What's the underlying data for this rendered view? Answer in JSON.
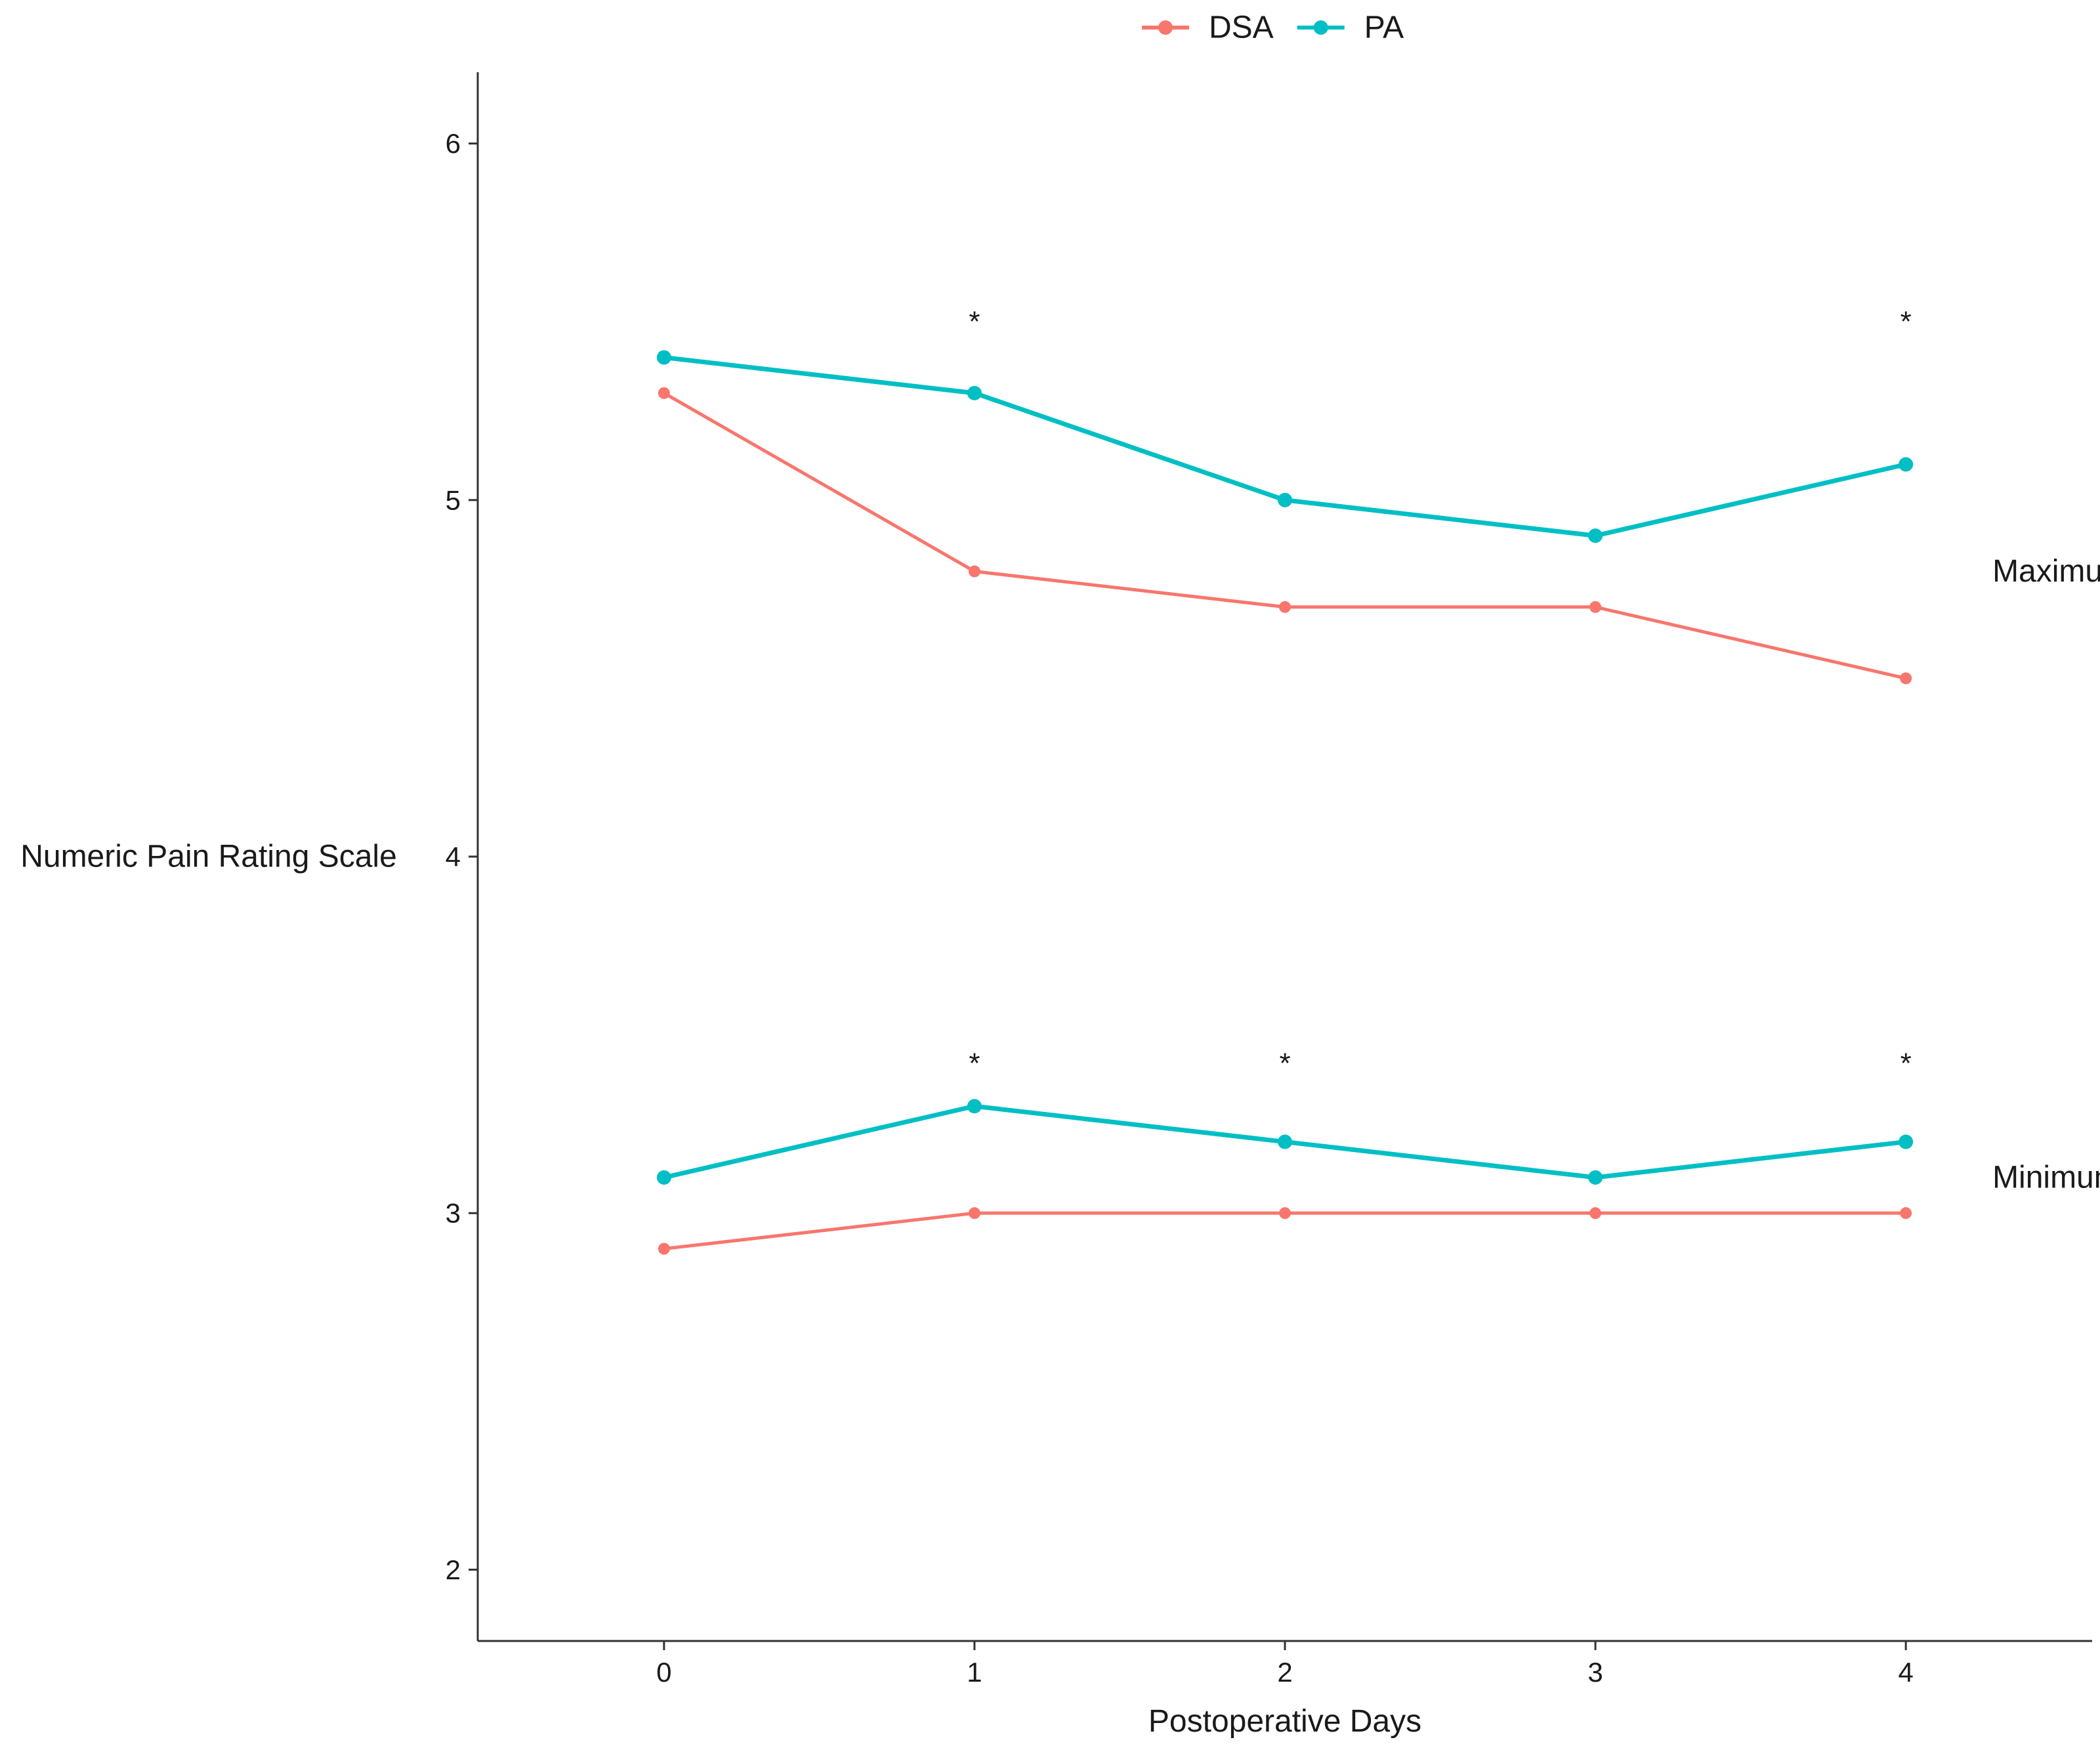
{
  "chart_data": {
    "type": "line",
    "xlabel": "Postoperative Days",
    "ylabel": "Numeric Pain Rating Scale",
    "x": [
      0,
      1,
      2,
      3,
      4
    ],
    "x_ticks": [
      "0",
      "1",
      "2",
      "3",
      "4"
    ],
    "xlim": [
      -0.6,
      4.6
    ],
    "y_ticks": [
      "2",
      "3",
      "4",
      "5",
      "6"
    ],
    "ylim": [
      1.8,
      6.2
    ],
    "grid": false,
    "legend": {
      "position": "top",
      "entries": [
        {
          "name": "DSA",
          "color": "#F8766D"
        },
        {
          "name": "PA",
          "color": "#00BFC4"
        }
      ]
    },
    "series": [
      {
        "name": "DSA",
        "group": "Maximum",
        "color": "#F8766D",
        "values": [
          5.3,
          4.8,
          4.7,
          4.7,
          4.5
        ]
      },
      {
        "name": "PA",
        "group": "Maximum",
        "color": "#00BFC4",
        "values": [
          5.4,
          5.3,
          5.0,
          4.9,
          5.1
        ]
      },
      {
        "name": "DSA",
        "group": "Minimum",
        "color": "#F8766D",
        "values": [
          2.9,
          3.0,
          3.0,
          3.0,
          3.0
        ]
      },
      {
        "name": "PA",
        "group": "Minimum",
        "color": "#00BFC4",
        "values": [
          3.1,
          3.3,
          3.2,
          3.1,
          3.2
        ]
      }
    ],
    "annotations": [
      {
        "text": "Maximum",
        "x": 4.3,
        "y": 4.8
      },
      {
        "text": "Minimum",
        "x": 4.3,
        "y": 3.1
      }
    ],
    "significance_markers": [
      {
        "text": "*",
        "x": 1,
        "y": 5.5
      },
      {
        "text": "*",
        "x": 4,
        "y": 5.5
      },
      {
        "text": "*",
        "x": 1,
        "y": 3.42
      },
      {
        "text": "*",
        "x": 2,
        "y": 3.42
      },
      {
        "text": "*",
        "x": 4,
        "y": 3.42
      }
    ]
  }
}
